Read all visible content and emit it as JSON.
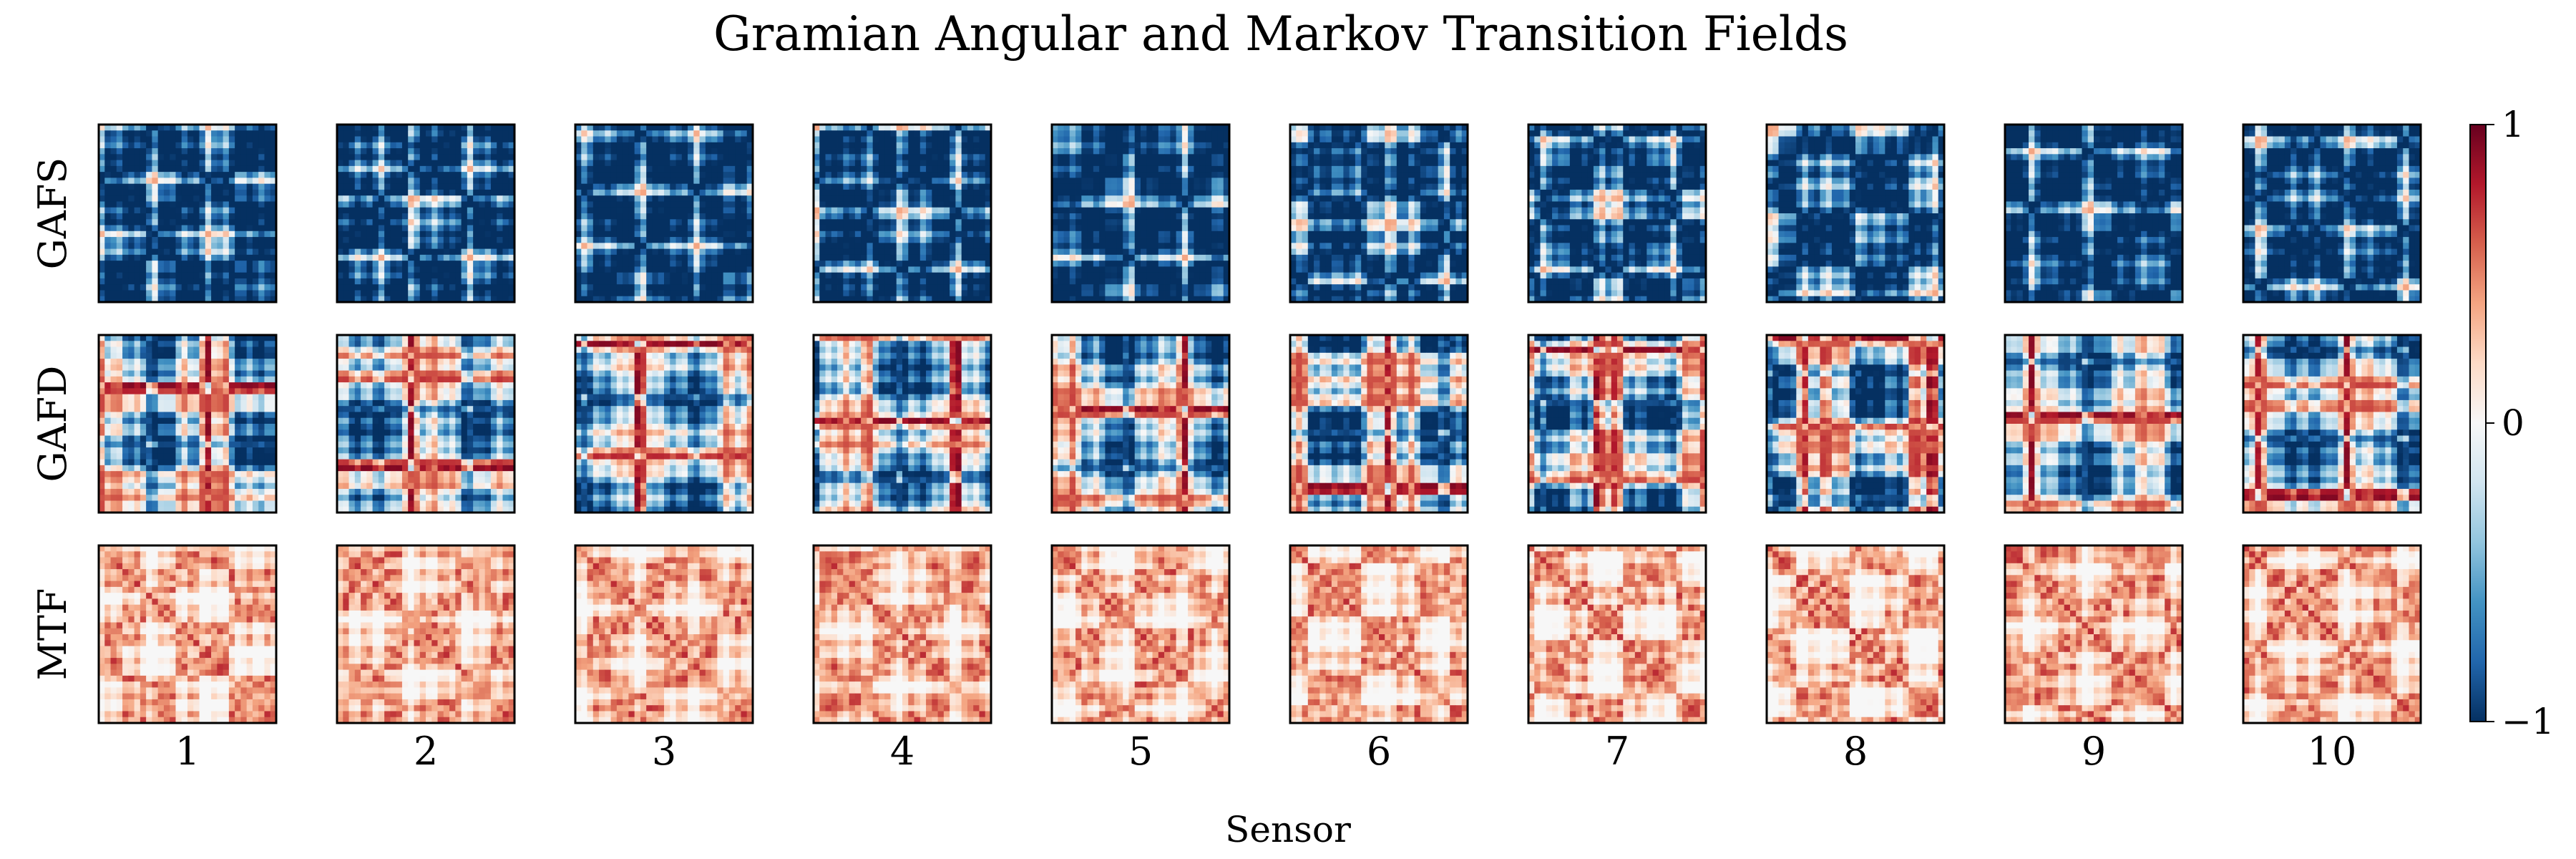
{
  "chart_data": {
    "type": "heatmap",
    "title": "Gramian Angular and Markov Transition Fields",
    "xlabel": "Sensor",
    "ylabel": "",
    "row_labels": [
      "GAFS",
      "GAFD",
      "MTF"
    ],
    "column_labels": [
      "1",
      "2",
      "3",
      "4",
      "5",
      "6",
      "7",
      "8",
      "9",
      "10"
    ],
    "colorbar": {
      "colormap": "RdBu_r",
      "range": [
        -1,
        1
      ],
      "ticks": [
        1,
        0,
        -1
      ],
      "tick_labels": [
        "1",
        "0",
        "−1"
      ],
      "colors": [
        "#053061",
        "#2166ac",
        "#4393c3",
        "#92c5de",
        "#d1e5f0",
        "#f7f7f7",
        "#fddbc7",
        "#f4a582",
        "#d6604d",
        "#b2182b",
        "#67001f"
      ]
    },
    "matrix_size": 30,
    "panel_value_summary": {
      "GAFS": "mostly negative (dark blue) with thin white/red stripes",
      "GAFD": "mixed blue and red blocks, range -1 to 1",
      "MTF": "non-negative, light red to dark red"
    }
  }
}
